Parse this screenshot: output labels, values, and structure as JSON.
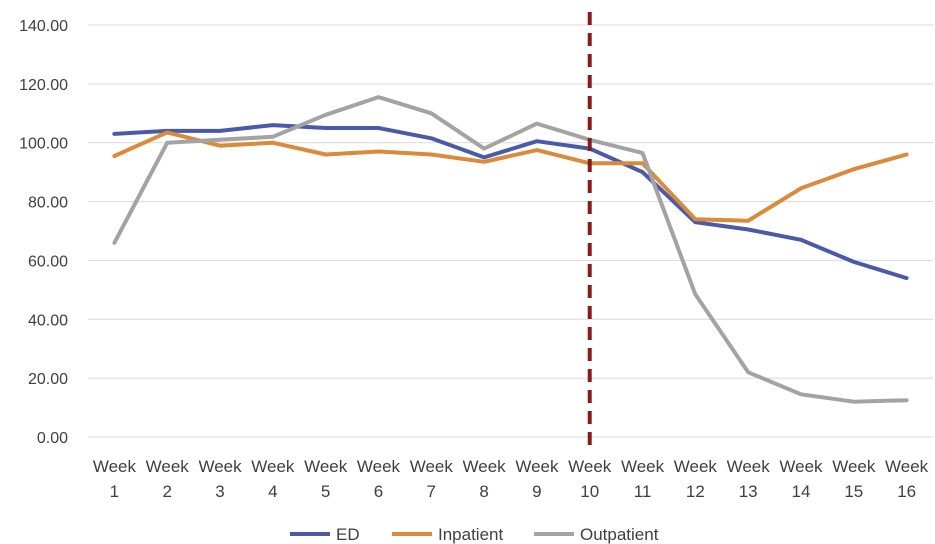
{
  "chart_data": {
    "type": "line",
    "categories": [
      [
        "Week",
        "1"
      ],
      [
        "Week",
        "2"
      ],
      [
        "Week",
        "3"
      ],
      [
        "Week",
        "4"
      ],
      [
        "Week",
        "5"
      ],
      [
        "Week",
        "6"
      ],
      [
        "Week",
        "7"
      ],
      [
        "Week",
        "8"
      ],
      [
        "Week",
        "9"
      ],
      [
        "Week",
        "10"
      ],
      [
        "Week",
        "11"
      ],
      [
        "Week",
        "12"
      ],
      [
        "Week",
        "13"
      ],
      [
        "Week",
        "14"
      ],
      [
        "Week",
        "15"
      ],
      [
        "Week",
        "16"
      ]
    ],
    "y_ticks": [
      "0.00",
      "20.00",
      "40.00",
      "60.00",
      "80.00",
      "100.00",
      "120.00",
      "140.00"
    ],
    "ylim": [
      0,
      140
    ],
    "grid": true,
    "legend_position": "bottom",
    "marker_line": {
      "x_category": "Week 10",
      "style": "dashed",
      "color": "#8b1a1a"
    },
    "series": [
      {
        "name": "ED",
        "color": "#4a5aa8",
        "values": [
          103,
          104,
          104,
          106,
          105,
          105,
          101.5,
          95,
          100.5,
          98,
          90,
          73,
          70.5,
          67,
          59.5,
          54
        ]
      },
      {
        "name": "Inpatient",
        "color": "#d98a3a",
        "values": [
          95.5,
          103.5,
          99,
          100,
          96,
          97,
          96,
          93.5,
          97.5,
          93,
          93,
          74,
          73.5,
          84.5,
          91,
          96
        ]
      },
      {
        "name": "Outpatient",
        "color": "#a3a3a3",
        "values": [
          66,
          100,
          101,
          102,
          109.5,
          115.5,
          110,
          98,
          106.5,
          101,
          96.5,
          48.5,
          22,
          14.5,
          12,
          12.5
        ]
      }
    ]
  }
}
